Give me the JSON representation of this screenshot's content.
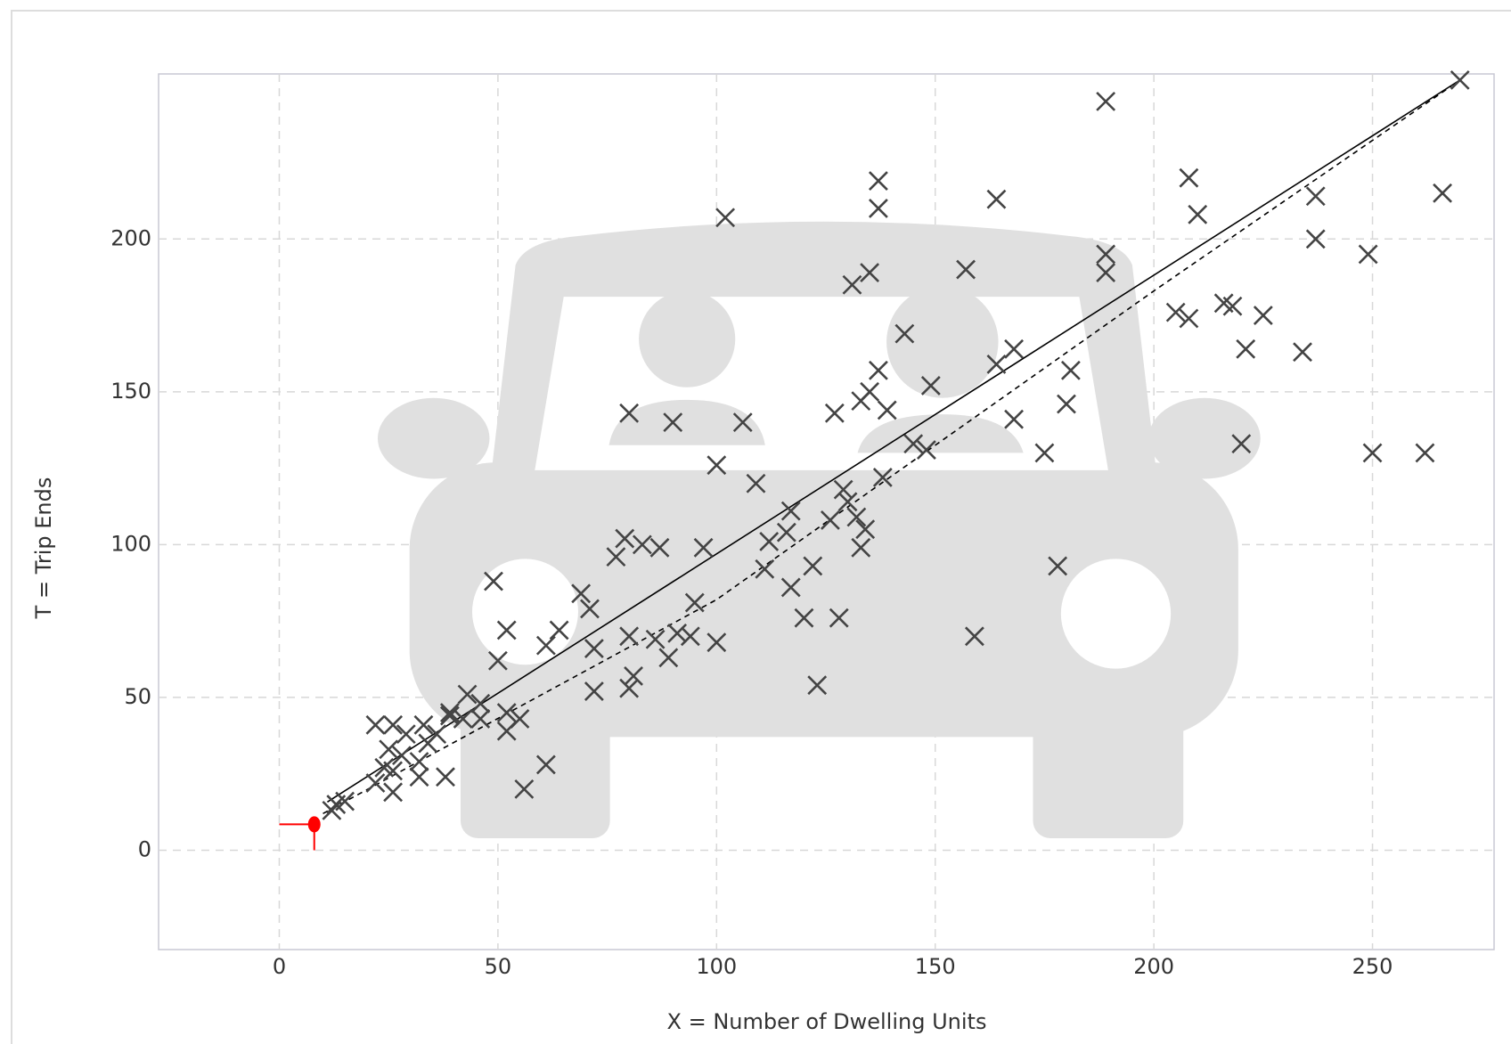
{
  "chart_data": {
    "type": "scatter",
    "x_label": "X = Number of Dwelling Units",
    "y_label": "T = Trip Ends",
    "xlim": [
      -27.6,
      277.8
    ],
    "ylim": [
      -32.5,
      254
    ],
    "xticks": [
      0,
      50,
      100,
      150,
      200,
      250
    ],
    "yticks": [
      0,
      50,
      100,
      150,
      200
    ],
    "grid": true,
    "series": [
      {
        "color": "#444444",
        "marker": "x",
        "x": [
          189,
          270,
          137,
          137,
          102,
          164,
          208,
          210,
          266,
          237,
          237,
          189,
          189,
          249,
          157,
          135,
          131,
          205,
          208,
          216,
          218,
          225,
          221,
          234,
          168,
          164,
          143,
          137,
          181,
          149,
          135,
          133,
          139,
          180,
          127,
          80,
          90,
          106,
          168,
          138,
          100,
          145,
          148,
          175,
          220,
          250,
          262,
          109,
          129,
          117,
          112,
          130,
          132,
          126,
          134,
          133,
          116,
          97,
          79,
          83,
          87,
          77,
          49,
          69,
          111,
          122,
          178,
          117,
          52,
          64,
          71,
          95,
          120,
          128,
          159,
          61,
          72,
          80,
          86,
          91,
          94,
          100,
          89,
          50,
          81,
          80,
          72,
          123,
          43,
          46,
          39,
          42,
          52,
          55,
          52,
          22,
          26,
          29,
          33,
          36,
          39,
          25,
          28,
          24,
          32,
          26,
          32,
          38,
          22,
          26,
          56,
          61,
          13,
          15,
          12,
          46,
          34
        ],
        "values": [
          245,
          252,
          219,
          210,
          207,
          213,
          220,
          208,
          215,
          214,
          200,
          195,
          189,
          195,
          190,
          189,
          185,
          176,
          174,
          179,
          178,
          175,
          164,
          163,
          164,
          159,
          169,
          157,
          157,
          152,
          150,
          147,
          144,
          146,
          143,
          143,
          140,
          140,
          141,
          122,
          126,
          133,
          131,
          130,
          133,
          130,
          130,
          120,
          118,
          111,
          101,
          114,
          109,
          108,
          105,
          99,
          104,
          99,
          102,
          100,
          99,
          96,
          88,
          84,
          92,
          93,
          93,
          86,
          72,
          72,
          79,
          81,
          76,
          76,
          70,
          67,
          66,
          70,
          69,
          71,
          70,
          68,
          63,
          62,
          57,
          53,
          52,
          54,
          51,
          48,
          45,
          43,
          45,
          43,
          39,
          41,
          41,
          38,
          41,
          38,
          44,
          33,
          31,
          27,
          29,
          26,
          24,
          24,
          22,
          19,
          20,
          28,
          15,
          16,
          13,
          43,
          35
        ]
      },
      {
        "color": "#ff0000",
        "marker": "dot",
        "guides": true,
        "x": [
          8
        ],
        "values": [
          8.5
        ]
      }
    ],
    "lines": [
      {
        "color": "#000000",
        "style": "solid",
        "x": [
          11,
          270
        ],
        "values": [
          15.8,
          252
        ]
      },
      {
        "color": "#000000",
        "style": "dashed",
        "x": [
          10,
          100,
          200,
          268
        ],
        "values": [
          12,
          82,
          183,
          250
        ]
      }
    ]
  }
}
